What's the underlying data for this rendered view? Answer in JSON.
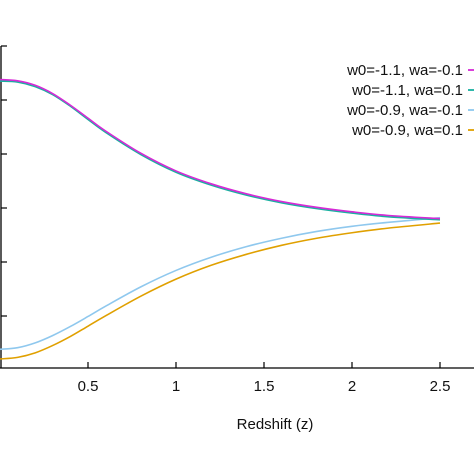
{
  "chart_data": {
    "type": "line",
    "title": "",
    "xlabel": "Redshift (z)",
    "ylabel": "",
    "xlim": [
      0,
      2.57
    ],
    "ylim": [
      0,
      1
    ],
    "x_ticks": [
      0.5,
      1,
      1.5,
      2,
      2.5
    ],
    "x_tick_labels": [
      "0.5",
      "1",
      "1.5",
      "2",
      "2.5"
    ],
    "grid": false,
    "legend_position": "top-right",
    "series": [
      {
        "name": "w0=-1.1, wa=-0.1",
        "color": "#d62ad6",
        "x": [
          0,
          0.1,
          0.2,
          0.3,
          0.4,
          0.5,
          0.6,
          0.8,
          1.0,
          1.2,
          1.4,
          1.6,
          1.8,
          2.0,
          2.2,
          2.5
        ],
        "y": [
          0.896,
          0.892,
          0.878,
          0.852,
          0.816,
          0.776,
          0.736,
          0.667,
          0.612,
          0.572,
          0.541,
          0.517,
          0.499,
          0.485,
          0.474,
          0.464
        ]
      },
      {
        "name": "w0=-1.1, wa=0.1",
        "color": "#1ab0a0",
        "x": [
          0,
          0.1,
          0.2,
          0.3,
          0.4,
          0.5,
          0.6,
          0.8,
          1.0,
          1.2,
          1.4,
          1.6,
          1.8,
          2.0,
          2.2,
          2.5
        ],
        "y": [
          0.891,
          0.888,
          0.874,
          0.849,
          0.813,
          0.772,
          0.732,
          0.663,
          0.608,
          0.568,
          0.537,
          0.513,
          0.495,
          0.481,
          0.47,
          0.46
        ]
      },
      {
        "name": "w0=-0.9, wa=-0.1",
        "color": "#8fc8ee",
        "x": [
          0,
          0.1,
          0.2,
          0.3,
          0.4,
          0.5,
          0.6,
          0.8,
          1.0,
          1.2,
          1.4,
          1.6,
          1.8,
          2.0,
          2.2,
          2.5
        ],
        "y": [
          0.058,
          0.063,
          0.078,
          0.101,
          0.129,
          0.16,
          0.192,
          0.252,
          0.303,
          0.344,
          0.377,
          0.403,
          0.424,
          0.44,
          0.452,
          0.467
        ]
      },
      {
        "name": "w0=-0.9, wa=0.1",
        "color": "#e0a000",
        "x": [
          0,
          0.1,
          0.2,
          0.3,
          0.4,
          0.5,
          0.6,
          0.8,
          1.0,
          1.2,
          1.4,
          1.6,
          1.8,
          2.0,
          2.2,
          2.5
        ],
        "y": [
          0.028,
          0.033,
          0.047,
          0.07,
          0.098,
          0.13,
          0.162,
          0.223,
          0.276,
          0.319,
          0.353,
          0.381,
          0.403,
          0.42,
          0.434,
          0.45
        ]
      }
    ]
  }
}
